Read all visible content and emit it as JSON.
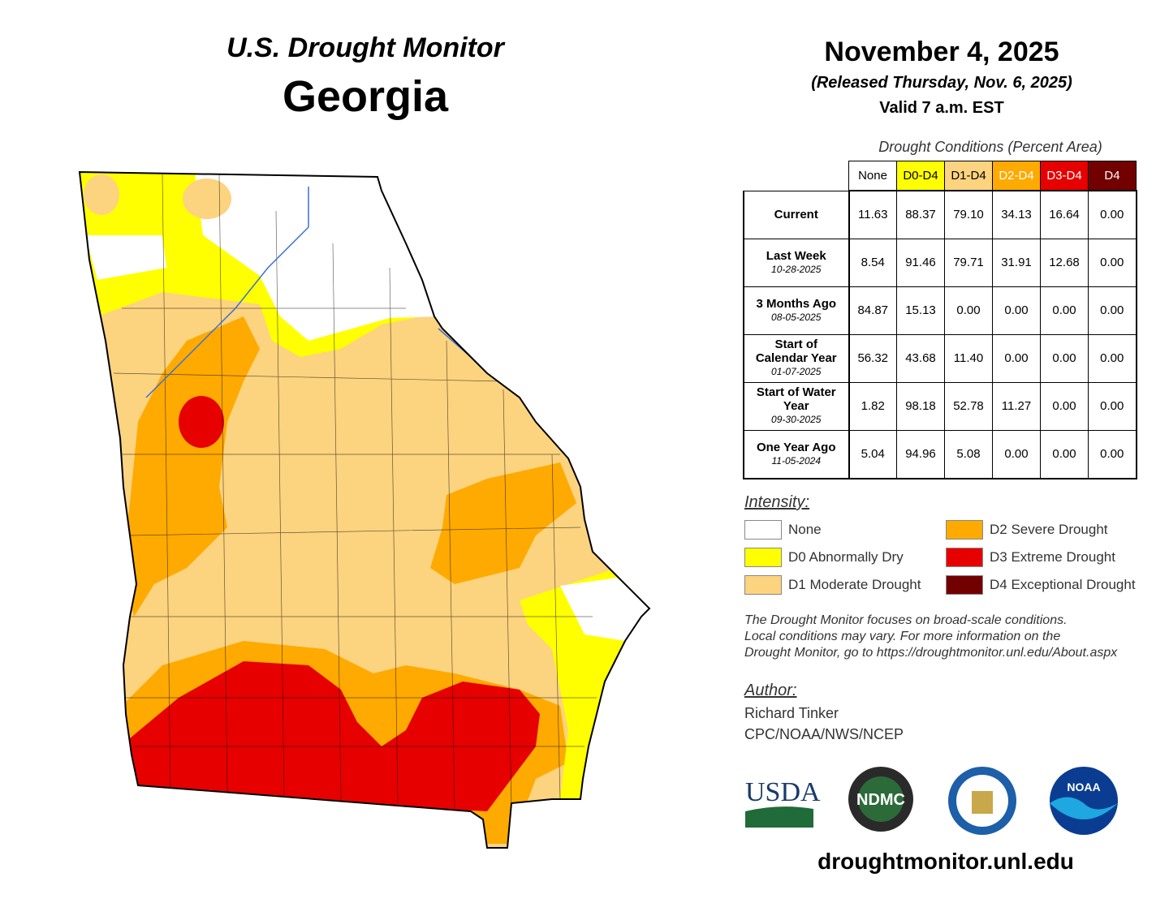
{
  "header": {
    "title": "U.S. Drought Monitor",
    "state": "Georgia",
    "date": "November 4, 2025",
    "released": "(Released Thursday, Nov. 6, 2025)",
    "valid": "Valid 7 a.m. EST"
  },
  "table": {
    "caption": "Drought Conditions (Percent Area)",
    "columns": [
      {
        "label": "None",
        "color": "#ffffff",
        "text": "#000000"
      },
      {
        "label": "D0-D4",
        "color": "#ffff00",
        "text": "#000000"
      },
      {
        "label": "D1-D4",
        "color": "#fcd37f",
        "text": "#000000"
      },
      {
        "label": "D2-D4",
        "color": "#ffaa00",
        "text": "#ffffff"
      },
      {
        "label": "D3-D4",
        "color": "#e60000",
        "text": "#ffffff"
      },
      {
        "label": "D4",
        "color": "#730000",
        "text": "#ffffff"
      }
    ],
    "rows": [
      {
        "label": "Current",
        "values": [
          "11.63",
          "88.37",
          "79.10",
          "34.13",
          "16.64",
          "0.00"
        ]
      },
      {
        "label": "Last Week",
        "date": "10-28-2025",
        "values": [
          "8.54",
          "91.46",
          "79.71",
          "31.91",
          "12.68",
          "0.00"
        ]
      },
      {
        "label": "3 Months Ago",
        "date": "08-05-2025",
        "values": [
          "84.87",
          "15.13",
          "0.00",
          "0.00",
          "0.00",
          "0.00"
        ]
      },
      {
        "label": "Start of Calendar Year",
        "date": "01-07-2025",
        "values": [
          "56.32",
          "43.68",
          "11.40",
          "0.00",
          "0.00",
          "0.00"
        ]
      },
      {
        "label": "Start of Water Year",
        "date": "09-30-2025",
        "values": [
          "1.82",
          "98.18",
          "52.78",
          "11.27",
          "0.00",
          "0.00"
        ]
      },
      {
        "label": "One Year Ago",
        "date": "11-05-2024",
        "values": [
          "5.04",
          "94.96",
          "5.08",
          "0.00",
          "0.00",
          "0.00"
        ]
      }
    ]
  },
  "legend": {
    "title": "Intensity:",
    "items": [
      {
        "label": "None",
        "color": "#ffffff"
      },
      {
        "label": "D0 Abnormally Dry",
        "color": "#ffff00"
      },
      {
        "label": "D1 Moderate Drought",
        "color": "#fcd37f"
      },
      {
        "label": "D2 Severe Drought",
        "color": "#ffaa00"
      },
      {
        "label": "D3 Extreme Drought",
        "color": "#e60000"
      },
      {
        "label": "D4 Exceptional Drought",
        "color": "#730000"
      }
    ]
  },
  "note": [
    "The Drought Monitor focuses on broad-scale conditions.",
    "Local conditions may vary. For more information on the",
    "Drought Monitor, go to https://droughtmonitor.unl.edu/About.aspx"
  ],
  "author": {
    "title": "Author:",
    "lines": [
      "Richard Tinker",
      "CPC/NOAA/NWS/NCEP"
    ]
  },
  "logos": [
    "USDA",
    "NDMC",
    "NOAA"
  ],
  "footer": "droughtmonitor.unl.edu"
}
